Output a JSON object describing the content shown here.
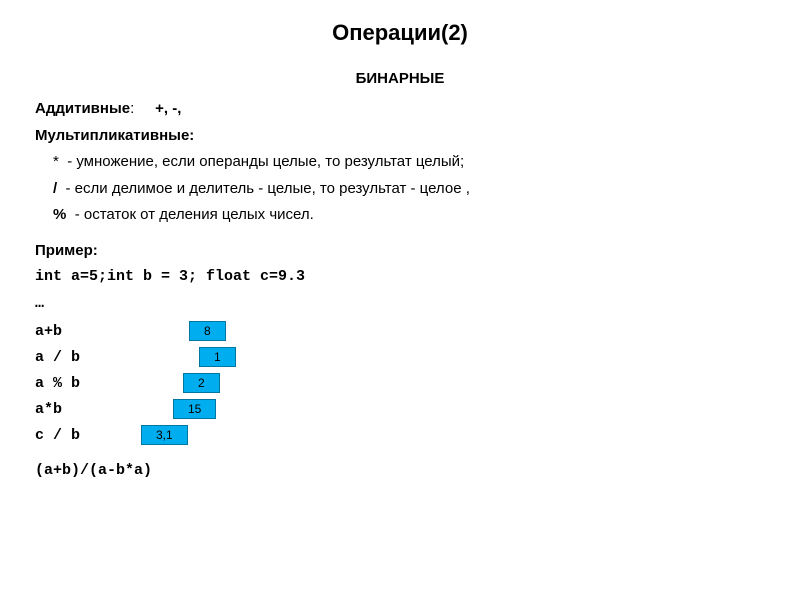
{
  "title": "Операции(2)",
  "subtitle": "БИНАРНЫЕ",
  "additive": {
    "label": "Аддитивные",
    "ops": "+, -,"
  },
  "multiplicative": {
    "label": "Мультипликативные:",
    "items": [
      {
        "sym": "*",
        "text": "-  умножение, если операнды целые, то результат целый;"
      },
      {
        "sym": "/",
        "text": "-  если делимое и делитель - целые, то результат -  целое ,"
      },
      {
        "sym": "%",
        "text": "- остаток от деления целых чисел."
      }
    ]
  },
  "example": {
    "label": "Пример:",
    "decl": "int a=5;int b = 3; float c=9.3",
    "dots": "…",
    "rows": [
      {
        "expr": "a+b",
        "result": "8",
        "offset_class": "row-offset-0"
      },
      {
        "expr": "a / b",
        "result": "1",
        "offset_class": "row-offset-1"
      },
      {
        "expr": "a % b",
        "result": "2",
        "offset_class": "row-offset-2"
      },
      {
        "expr": "a*b",
        "result": "15",
        "offset_class": "row-offset-3"
      },
      {
        "expr": "c / b",
        "result": "3,1",
        "offset_class": "row-offset-4"
      }
    ],
    "final": "(a+b)/(a-b*a)"
  },
  "colors": {
    "box_bg": "#00aeef",
    "box_border": "#0077a3",
    "page_bg": "#ffffff",
    "text": "#000000"
  }
}
